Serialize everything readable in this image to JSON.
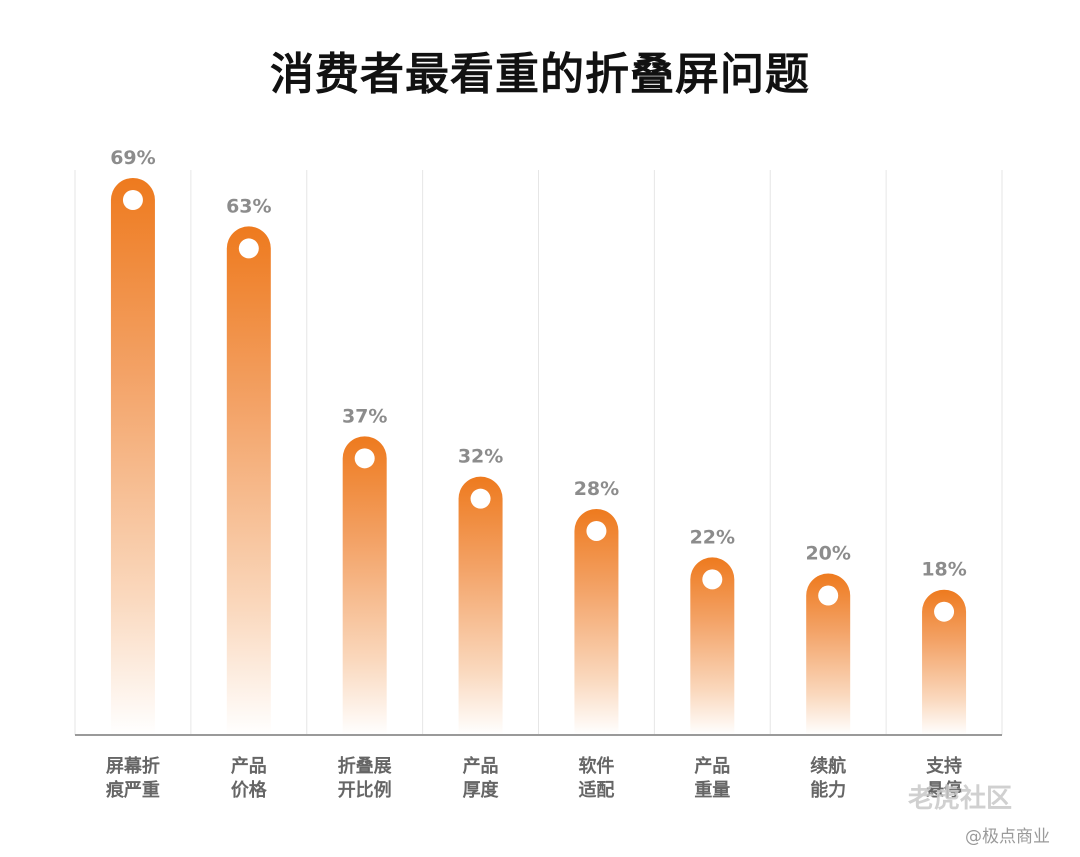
{
  "chart_data": {
    "type": "bar",
    "title": "消费者最看重的折叠屏问题",
    "categories": [
      [
        "屏幕折",
        "痕严重"
      ],
      [
        "产品",
        "价格"
      ],
      [
        "折叠展",
        "开比例"
      ],
      [
        "产品",
        "厚度"
      ],
      [
        "软件",
        "适配"
      ],
      [
        "产品",
        "重量"
      ],
      [
        "续航",
        "能力"
      ],
      [
        "支持",
        "悬停"
      ]
    ],
    "values": [
      69,
      63,
      37,
      32,
      28,
      22,
      20,
      18
    ],
    "value_labels": [
      "69%",
      "63%",
      "37%",
      "32%",
      "28%",
      "22%",
      "20%",
      "18%"
    ],
    "ylim": [
      0,
      72
    ],
    "xlabel": "",
    "ylabel": "",
    "grid": true,
    "colors": {
      "bar_top": "#ee7a1e",
      "bar_bottom": "#ffffff",
      "grid": "#e6e6e6",
      "axis": "#9a9a9a"
    }
  },
  "watermarks": {
    "primary": "老虎社区",
    "secondary": "@极点商业"
  }
}
